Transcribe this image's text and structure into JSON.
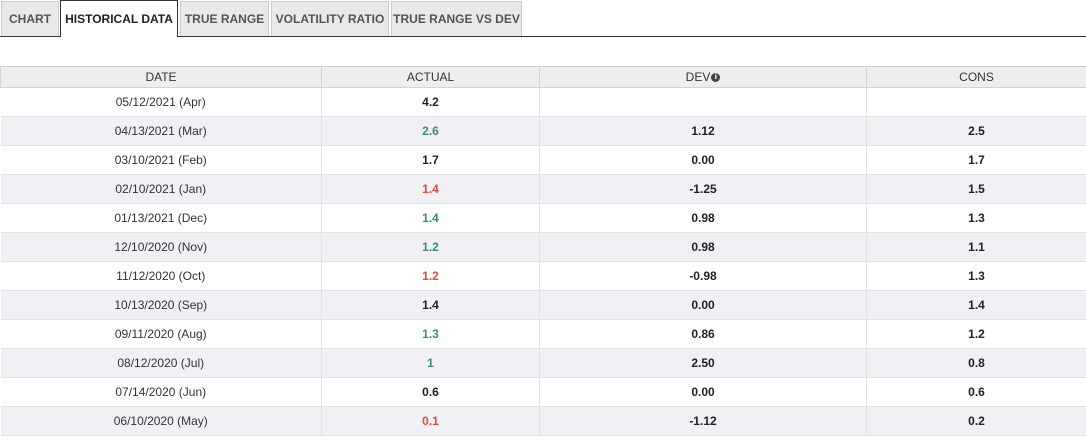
{
  "tabs": [
    {
      "label": "CHART"
    },
    {
      "label": "HISTORICAL DATA"
    },
    {
      "label": "TRUE RANGE"
    },
    {
      "label": "VOLATILITY RATIO"
    },
    {
      "label": "TRUE RANGE VS DEV"
    }
  ],
  "active_tab": "HISTORICAL DATA",
  "table": {
    "headers": {
      "date": "DATE",
      "actual": "ACTUAL",
      "dev": "DEV",
      "cons": "CONS"
    },
    "info_icon": "info-circle-icon",
    "colors": {
      "up": "#3c8f6e",
      "down": "#e04a3f"
    },
    "rows": [
      {
        "date": "05/12/2021 (Apr)",
        "actual": "4.2",
        "trend": "neutral",
        "dev": "",
        "cons": ""
      },
      {
        "date": "04/13/2021 (Mar)",
        "actual": "2.6",
        "trend": "up",
        "dev": "1.12",
        "cons": "2.5"
      },
      {
        "date": "03/10/2021 (Feb)",
        "actual": "1.7",
        "trend": "neutral",
        "dev": "0.00",
        "cons": "1.7"
      },
      {
        "date": "02/10/2021 (Jan)",
        "actual": "1.4",
        "trend": "down",
        "dev": "-1.25",
        "cons": "1.5"
      },
      {
        "date": "01/13/2021 (Dec)",
        "actual": "1.4",
        "trend": "up",
        "dev": "0.98",
        "cons": "1.3"
      },
      {
        "date": "12/10/2020 (Nov)",
        "actual": "1.2",
        "trend": "up",
        "dev": "0.98",
        "cons": "1.1"
      },
      {
        "date": "11/12/2020 (Oct)",
        "actual": "1.2",
        "trend": "down",
        "dev": "-0.98",
        "cons": "1.3"
      },
      {
        "date": "10/13/2020 (Sep)",
        "actual": "1.4",
        "trend": "neutral",
        "dev": "0.00",
        "cons": "1.4"
      },
      {
        "date": "09/11/2020 (Aug)",
        "actual": "1.3",
        "trend": "up",
        "dev": "0.86",
        "cons": "1.2"
      },
      {
        "date": "08/12/2020 (Jul)",
        "actual": "1",
        "trend": "up",
        "dev": "2.50",
        "cons": "0.8"
      },
      {
        "date": "07/14/2020 (Jun)",
        "actual": "0.6",
        "trend": "neutral",
        "dev": "0.00",
        "cons": "0.6"
      },
      {
        "date": "06/10/2020 (May)",
        "actual": "0.1",
        "trend": "down",
        "dev": "-1.12",
        "cons": "0.2"
      }
    ]
  }
}
